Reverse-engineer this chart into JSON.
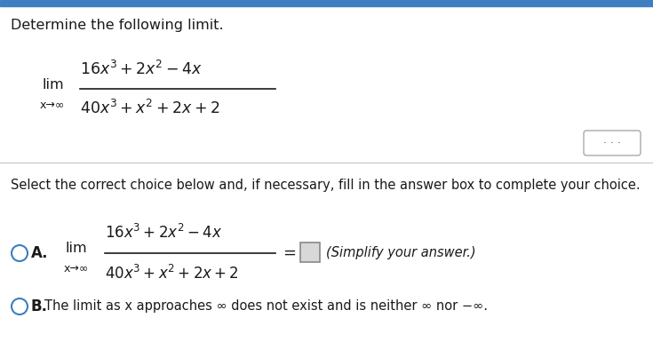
{
  "bg_color": "#ffffff",
  "top_bar_color": "#3d7fc1",
  "title": "Determine the following limit.",
  "select_text": "Select the correct choice below and, if necessary, fill in the answer box to complete your choice.",
  "option_A_simplify": "(Simplify your answer.)",
  "option_B_text": "The limit as x approaches ∞ does not exist and is neither ∞ nor −∞.",
  "text_color": "#1a1a1a",
  "circle_color": "#3d7fc1",
  "divider_color": "#cccccc",
  "top_bar_height": 0.018,
  "font_size_title": 11.5,
  "font_size_body": 10.5,
  "font_size_math_main": 12.5,
  "font_size_math_sub": 9.5,
  "font_size_lim": 11.5,
  "font_size_lim_sub": 9.0
}
